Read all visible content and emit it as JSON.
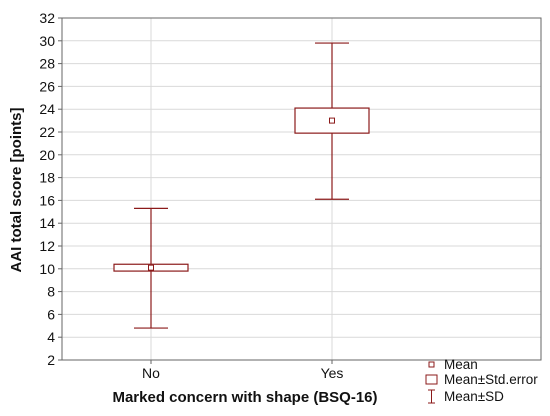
{
  "chart_data": {
    "type": "box",
    "title": "",
    "xlabel": "Marked concern with shape (BSQ-16)",
    "ylabel": "AAI total score [points]",
    "ylim": [
      2,
      32
    ],
    "yticks": [
      2,
      4,
      6,
      8,
      10,
      12,
      14,
      16,
      18,
      20,
      22,
      24,
      26,
      28,
      30,
      32
    ],
    "grid": true,
    "legend_position": "bottom-right",
    "categories": [
      "No",
      "Yes"
    ],
    "series": [
      {
        "category": "No",
        "mean": 10.1,
        "se_low": 9.8,
        "se_high": 10.4,
        "sd_low": 4.8,
        "sd_high": 15.3
      },
      {
        "category": "Yes",
        "mean": 23.0,
        "se_low": 21.9,
        "se_high": 24.1,
        "sd_low": 16.1,
        "sd_high": 29.8
      }
    ],
    "legend": [
      {
        "symbol": "mean",
        "label": "Mean"
      },
      {
        "symbol": "se-box",
        "label": "Mean±Std.error"
      },
      {
        "symbol": "sd-whisker",
        "label": "Mean±SD"
      }
    ],
    "colors": {
      "plot": "#8b1a1a",
      "grid": "#d9d9d9",
      "axis": "#666666"
    }
  }
}
